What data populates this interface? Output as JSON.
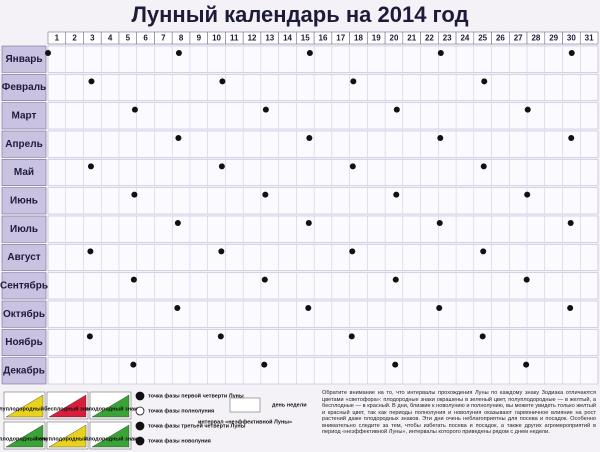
{
  "title": "Лунный календарь на 2014 год",
  "days": [
    1,
    2,
    3,
    4,
    5,
    6,
    7,
    8,
    9,
    10,
    11,
    12,
    13,
    14,
    15,
    16,
    17,
    18,
    19,
    20,
    21,
    22,
    23,
    24,
    25,
    26,
    27,
    28,
    29,
    30,
    31
  ],
  "months": [
    "Январь",
    "Февраль",
    "Март",
    "Апрель",
    "Май",
    "Июнь",
    "Июль",
    "Август",
    "Сентябрь",
    "Октябрь",
    "Ноябрь",
    "Декабрь"
  ],
  "legend": {
    "signs": [
      "полуплодородный знак",
      "бесплодный знак",
      "плодородный знак",
      "плодородный знак",
      "полуплодородный знак",
      "плодородный знак"
    ],
    "phases": [
      "точка фазы первой четверти Луны",
      "точка фазы полнолуния",
      "точка фазы третьей четверти Луны",
      "точка фазы новолуния"
    ],
    "interval": "интервал «неэффективной Луны»",
    "weekday": "день недели"
  },
  "note": "Обратите внимание на то, что интервалы прохождения Луны по каждому знаку Зодиака отличаются цветами «светофора»: плодородные знаки окрашены в зеленый цвет, полуплодородные — в желтый, а бесплодные — в красный. В дни, близкие к новолунию и полнолунию, вы можете увидеть только желтый и красный цвет, так как периоды полнолуния и новолуния оказывают гармоничное влияние на рост растений даже плодородных знаков. Эти дни очень неблагоприятны для посева и посадок. Особенно внимательно следите за тем, чтобы избегать посева и посадок, а также других агромероприятий в период «неэффективной Луны», интервалы которого приведены рядом с днем недели."
}
